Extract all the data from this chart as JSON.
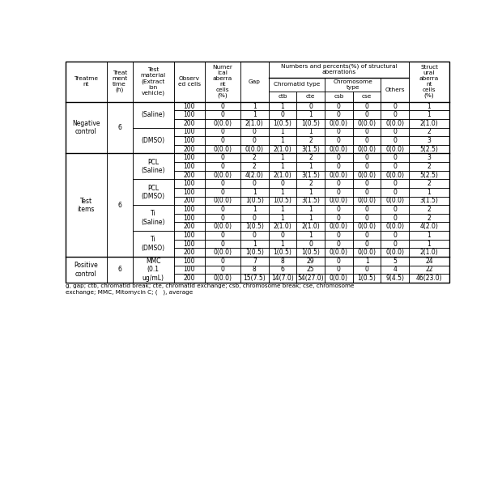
{
  "footnote": "g, gap; ctb, chromatid break; cte, chromatid exchange; csb, chromosome break; cse, chromosome\nexchange; MMC, Mitomycin C; (   ), average",
  "col_widths_raw": [
    44,
    28,
    44,
    33,
    38,
    30,
    30,
    30,
    30,
    30,
    30,
    43
  ],
  "hA": 26,
  "hB": 22,
  "hC": 17,
  "dr": 13.8,
  "tl": 4,
  "tt": 601,
  "lw": 0.5,
  "hfs": 5.3,
  "dfs": 5.5,
  "header_col0": "Treatme\nnt",
  "header_col1": "Treat\nment\ntime\n(h)",
  "header_col2": "Test\nmaterial\n(Extract\nion\nvehicle)",
  "header_col3": "Observ\ned cells",
  "header_col4": "Numer\nical\naberra\nnt\ncells\n(%)",
  "header_col5": "Gap",
  "header_numbers": "Numbers and percents(%) of structural\naberrations",
  "header_chromatid": "Chromatid type",
  "header_chromosome": "Chromosome\ntype",
  "header_others": "Others",
  "header_ctb": "ctb",
  "header_cte": "cte",
  "header_csb": "csb",
  "header_cse": "cse",
  "header_col11": "Struct\nural\naberra\nnt\ncells\n(%)",
  "merges_col0": [
    [
      0,
      5,
      "Negative\ncontrol"
    ],
    [
      6,
      17,
      "Test\nitems"
    ],
    [
      18,
      20,
      "Positive\ncontrol"
    ]
  ],
  "merges_col1": [
    [
      0,
      5,
      "6"
    ],
    [
      6,
      17,
      "6"
    ],
    [
      18,
      20,
      "6"
    ]
  ],
  "merges_col2": [
    [
      0,
      2,
      "(Saline)"
    ],
    [
      3,
      5,
      "(DMSO)"
    ],
    [
      6,
      8,
      "PCL\n(Saline)"
    ],
    [
      9,
      11,
      "PCL\n(DMSO)"
    ],
    [
      12,
      14,
      "Ti\n(Saline)"
    ],
    [
      15,
      17,
      "Ti\n(DMSO)"
    ],
    [
      18,
      20,
      "MMC\n(0.1\nug/mL)"
    ]
  ],
  "group_boundaries": [
    5,
    17
  ],
  "rows": [
    [
      "100",
      "0",
      "1",
      "1",
      "0",
      "0",
      "0",
      "0",
      "1"
    ],
    [
      "100",
      "0",
      "1",
      "0",
      "1",
      "0",
      "0",
      "0",
      "1"
    ],
    [
      "200",
      "0(0.0)",
      "2(1.0)",
      "1(0.5)",
      "1(0.5)",
      "0(0.0)",
      "0(0.0)",
      "0(0.0)",
      "2(1.0)"
    ],
    [
      "100",
      "0",
      "0",
      "1",
      "1",
      "0",
      "0",
      "0",
      "2"
    ],
    [
      "100",
      "0",
      "0",
      "1",
      "2",
      "0",
      "0",
      "0",
      "3"
    ],
    [
      "200",
      "0(0.0)",
      "0(0.0)",
      "2(1.0)",
      "3(1.5)",
      "0(0.0)",
      "0(0.0)",
      "0(0.0)",
      "5(2.5)"
    ],
    [
      "100",
      "0",
      "2",
      "1",
      "2",
      "0",
      "0",
      "0",
      "3"
    ],
    [
      "100",
      "0",
      "2",
      "1",
      "1",
      "0",
      "0",
      "0",
      "2"
    ],
    [
      "200",
      "0(0.0)",
      "4(2.0)",
      "2(1.0)",
      "3(1.5)",
      "0(0.0)",
      "0(0.0)",
      "0(0.0)",
      "5(2.5)"
    ],
    [
      "100",
      "0",
      "0",
      "0",
      "2",
      "0",
      "0",
      "0",
      "2"
    ],
    [
      "100",
      "0",
      "1",
      "1",
      "1",
      "0",
      "0",
      "0",
      "1"
    ],
    [
      "200",
      "0(0.0)",
      "1(0.5)",
      "1(0.5)",
      "3(1.5)",
      "0(0.0)",
      "0(0.0)",
      "0(0.0)",
      "3(1.5)"
    ],
    [
      "100",
      "0",
      "1",
      "1",
      "1",
      "0",
      "0",
      "0",
      "2"
    ],
    [
      "100",
      "0",
      "0",
      "1",
      "1",
      "0",
      "0",
      "0",
      "2"
    ],
    [
      "200",
      "0(0.0)",
      "1(0.5)",
      "2(1.0)",
      "2(1.0)",
      "0(0.0)",
      "0(0.0)",
      "0(0.0)",
      "4(2.0)"
    ],
    [
      "100",
      "0",
      "0",
      "0",
      "1",
      "0",
      "0",
      "0",
      "1"
    ],
    [
      "100",
      "0",
      "1",
      "1",
      "0",
      "0",
      "0",
      "0",
      "1"
    ],
    [
      "200",
      "0(0.0)",
      "1(0.5)",
      "1(0.5)",
      "1(0.5)",
      "0(0.0)",
      "0(0.0)",
      "0(0.0)",
      "2(1.0)"
    ],
    [
      "100",
      "0",
      "7",
      "8",
      "29",
      "0",
      "1",
      "5",
      "24"
    ],
    [
      "100",
      "0",
      "8",
      "6",
      "25",
      "0",
      "0",
      "4",
      "22"
    ],
    [
      "200",
      "0(0.0)",
      "15(7.5)",
      "14(7.0)",
      "54(27.0)",
      "0(0.0)",
      "1(0.5)",
      "9(4.5)",
      "46(23.0)"
    ]
  ]
}
